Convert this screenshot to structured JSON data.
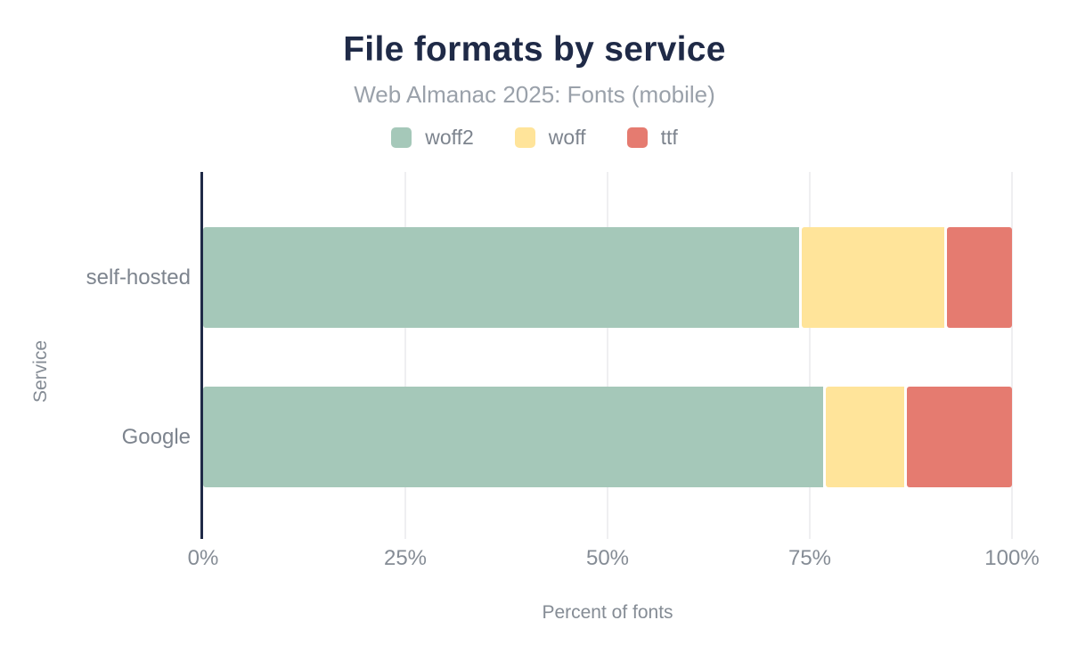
{
  "chart_data": {
    "type": "bar",
    "orientation": "horizontal",
    "stacked": true,
    "title": "File formats by service",
    "subtitle": "Web Almanac 2025: Fonts (mobile)",
    "categories": [
      "self-hosted",
      "Google"
    ],
    "series": [
      {
        "name": "woff2",
        "color": "#A5C8B9",
        "values": [
          74,
          77
        ]
      },
      {
        "name": "woff",
        "color": "#FFE49A",
        "values": [
          18,
          10
        ]
      },
      {
        "name": "ttf",
        "color": "#E57B70",
        "values": [
          8,
          13
        ]
      }
    ],
    "xlabel": "Percent of fonts",
    "ylabel": "Service",
    "xlim": [
      0,
      100
    ],
    "x_ticks": [
      {
        "value": 0,
        "label": "0%"
      },
      {
        "value": 25,
        "label": "25%"
      },
      {
        "value": 50,
        "label": "50%"
      },
      {
        "value": 75,
        "label": "75%"
      },
      {
        "value": 100,
        "label": "100%"
      }
    ],
    "legend_position": "top",
    "grid": true,
    "units": "percent"
  },
  "colors": {
    "title_text": "#1F2A47",
    "muted_text": "#858C95",
    "category_text": "#7D848E",
    "axis_line": "#1F2A47",
    "gridline": "#EFEFF1",
    "background": "#FFFFFF"
  }
}
